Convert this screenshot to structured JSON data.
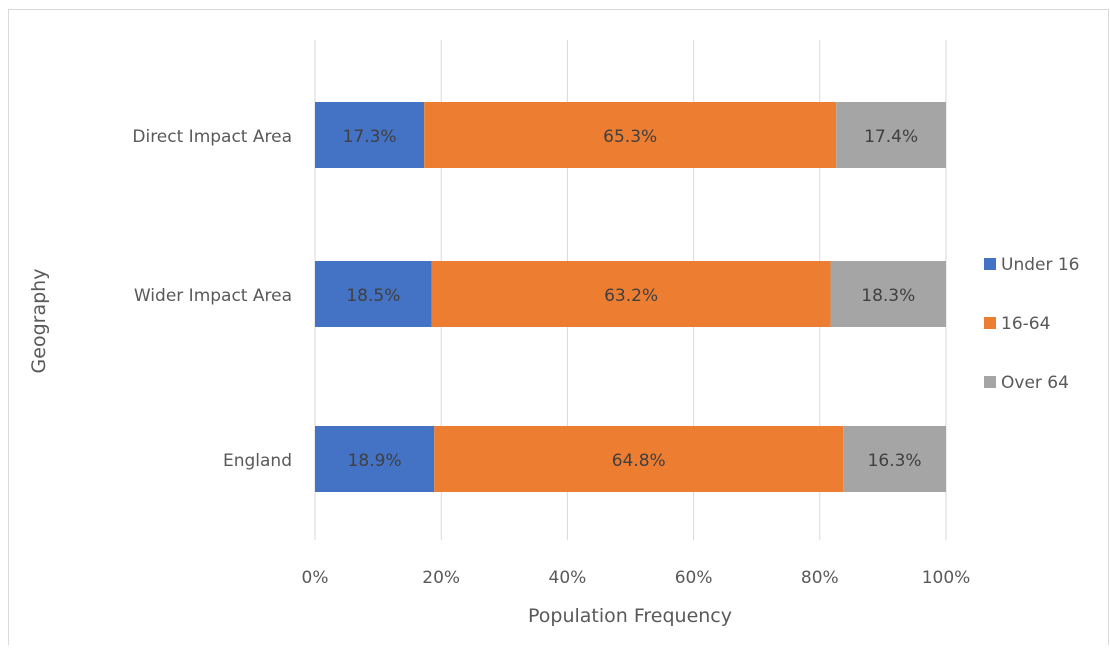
{
  "chart_data": {
    "type": "bar",
    "orientation": "horizontal",
    "stacked": "percent",
    "title": "",
    "xlabel": "Population Frequency",
    "ylabel": "Geography",
    "xlim": [
      0,
      100
    ],
    "x_ticks": [
      "0%",
      "20%",
      "40%",
      "60%",
      "80%",
      "100%"
    ],
    "grid": true,
    "legend": "right",
    "categories": [
      "Direct Impact Area",
      "Wider Impact Area",
      "England"
    ],
    "series": [
      {
        "name": "Under 16",
        "color": "#4472c4",
        "values": [
          17.3,
          18.5,
          18.9
        ],
        "labels": [
          "17.3%",
          "18.5%",
          "18.9%"
        ]
      },
      {
        "name": "16-64",
        "color": "#ed7d31",
        "values": [
          65.3,
          63.2,
          64.8
        ],
        "labels": [
          "65.3%",
          "63.2%",
          "64.8%"
        ]
      },
      {
        "name": "Over 64",
        "color": "#a5a5a5",
        "values": [
          17.4,
          18.3,
          16.3
        ],
        "labels": [
          "17.4%",
          "18.3%",
          "16.3%"
        ]
      }
    ]
  }
}
